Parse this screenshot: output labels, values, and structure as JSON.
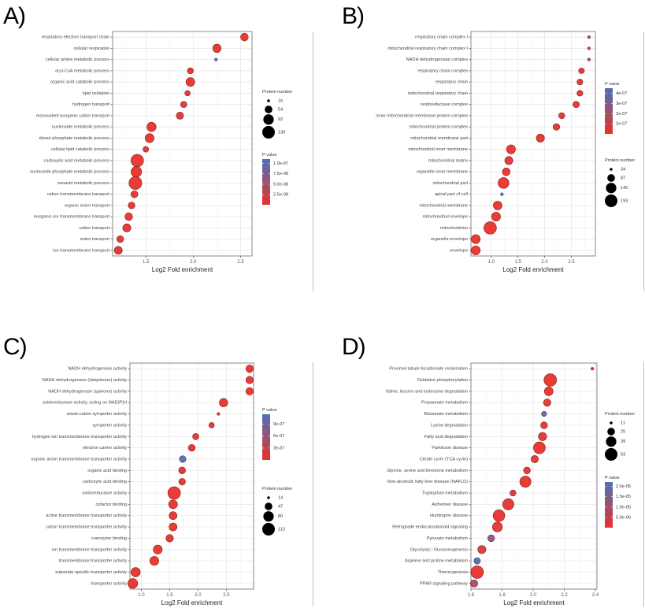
{
  "panel_labels": [
    "A)",
    "B)",
    "C)",
    "D)"
  ],
  "chart_data": [
    {
      "type": "scatter",
      "panel": "A)",
      "title": "",
      "xlabel": "Log2 Fold enrichment",
      "ylabel": "",
      "xlim": [
        1.15,
        2.62
      ],
      "xticks": [
        1.5,
        2.0,
        2.5
      ],
      "xtick_labels": [
        "1.5",
        "2.0",
        "2.5"
      ],
      "grid": true,
      "categories": [
        "respiratory electron transport chain",
        "cellular respiration",
        "cellular amine metabolic process",
        "acyl-CoA metabolic process",
        "organic acid catabolic process",
        "lipid oxidation",
        "hydrogen transport",
        "monovalent inorganic cation transport",
        "nucleoside metabolic process",
        "ribose phosphate metabolic process",
        "cellular lipid catabolic process",
        "carboxylic acid metabolic process",
        "nucleoside phosphate metabolic process",
        "oxoacid metabolic process",
        "cation transmembrane transport",
        "organic anion transport",
        "inorganic ion transmembrane transport",
        "cation transport",
        "anion transport",
        "ion transmembrane transport"
      ],
      "x": [
        2.54,
        2.25,
        2.24,
        1.97,
        1.97,
        1.94,
        1.9,
        1.86,
        1.56,
        1.54,
        1.5,
        1.41,
        1.4,
        1.39,
        1.38,
        1.35,
        1.32,
        1.3,
        1.23,
        1.21
      ],
      "protein_number": [
        55,
        62,
        16,
        38,
        68,
        32,
        40,
        50,
        75,
        70,
        35,
        130,
        95,
        135,
        48,
        45,
        55,
        60,
        45,
        58
      ],
      "p_value": [
        1e-09,
        2e-09,
        1.05e-07,
        5e-09,
        1e-09,
        8e-09,
        1.2e-08,
        1e-08,
        1e-09,
        1e-09,
        1.5e-08,
        1e-09,
        1e-09,
        1e-09,
        4e-09,
        6e-09,
        4e-09,
        3e-09,
        8e-09,
        5e-09
      ],
      "legend_order": [
        "size",
        "color"
      ],
      "size_legend": {
        "title": "Protein number",
        "values": [
          16,
          54,
          92,
          130
        ],
        "labels": [
          "16",
          "54",
          "92",
          "130"
        ]
      },
      "color_legend": {
        "title": "P value",
        "range": [
          1e-09,
          1.1e-07
        ],
        "ticks": [
          1e-07,
          7.5e-08,
          5e-08,
          2.5e-08
        ],
        "labels": [
          "1.0e-07",
          "7.5e-08",
          "5.0e-08",
          "2.5e-08"
        ],
        "low_color": "#e8312b",
        "high_color": "#4a72b8"
      }
    },
    {
      "type": "scatter",
      "panel": "B)",
      "title": "",
      "xlabel": "Log2 Fold enrichment",
      "ylabel": "",
      "xlim": [
        0.62,
        2.95
      ],
      "xticks": [
        1.0,
        1.5,
        2.0,
        2.5
      ],
      "xtick_labels": [
        "1.0",
        "1.5",
        "2.0",
        "2.5"
      ],
      "grid": true,
      "categories": [
        "respiratory chain complex I",
        "mitochondrial respiratory chain complex I",
        "NADH dehydrogenase complex",
        "respiratory chain complex",
        "respiratory chain",
        "mitochondrial respiratory chain",
        "oxidoreductase complex",
        "inner mitochondrial membrane protein complex",
        "mitochondrial protein complex",
        "mitochondrial membrane part",
        "mitochondrial inner membrane",
        "mitochondrial matrix",
        "organelle inner membrane",
        "mitochondrial part",
        "apical part of cell",
        "mitochondrial membrane",
        "mitochondrial envelope",
        "mitochondrion",
        "organelle envelope",
        "envelope"
      ],
      "x": [
        2.83,
        2.83,
        2.83,
        2.69,
        2.66,
        2.66,
        2.59,
        2.32,
        2.22,
        1.92,
        1.37,
        1.33,
        1.28,
        1.23,
        1.2,
        1.12,
        1.09,
        0.98,
        0.71,
        0.71
      ],
      "protein_number": [
        34,
        34,
        34,
        60,
        62,
        62,
        70,
        65,
        72,
        95,
        110,
        95,
        90,
        150,
        34,
        105,
        110,
        193,
        110,
        112
      ],
      "p_value": [
        1.5e-07,
        1.5e-07,
        1.2e-07,
        2e-08,
        3e-08,
        3e-08,
        2e-08,
        2e-08,
        2e-08,
        1e-08,
        1e-09,
        1e-09,
        1e-09,
        1e-09,
        4.3e-07,
        1e-09,
        1e-09,
        1e-09,
        1e-09,
        1e-09
      ],
      "legend_order": [
        "color",
        "size"
      ],
      "size_legend": {
        "title": "Protein number",
        "values": [
          34,
          87,
          140,
          193
        ],
        "labels": [
          "34",
          "87",
          "140",
          "193"
        ]
      },
      "color_legend": {
        "title": "P value",
        "range": [
          1e-09,
          4.5e-07
        ],
        "ticks": [
          4e-07,
          3e-07,
          2e-07,
          1e-07
        ],
        "labels": [
          "4e-07",
          "3e-07",
          "2e-07",
          "1e-07"
        ],
        "low_color": "#e8312b",
        "high_color": "#4a72b8"
      }
    },
    {
      "type": "scatter",
      "panel": "C)",
      "title": "",
      "xlabel": "Log2 Fold enrichment",
      "ylabel": "",
      "xlim": [
        0.8,
        2.98
      ],
      "xticks": [
        1.0,
        1.5,
        2.0,
        2.5
      ],
      "xtick_labels": [
        "1.0",
        "1.5",
        "2.0",
        "2.5"
      ],
      "grid": true,
      "categories": [
        "NADH dehydrogenase activity",
        "NADH dehydrogenase (ubiquinone) activity",
        "NADH dehydrogenase (quinone) activity",
        "oxidoreductase activity, acting on NAD(P)H",
        "solute:cation symporter activity",
        "symporter activity",
        "hydrogen ion transmembrane transporter activity",
        "electron carrier activity",
        "organic anion transmembrane transporter activity",
        "organic acid binding",
        "carboxylic acid binding",
        "oxidoreductase activity",
        "cofactor binding",
        "active transmembrane transporter activity",
        "cation transmembrane transporter activity",
        "coenzyme binding",
        "ion transmembrane transporter activity",
        "transmembrane transporter activity",
        "substrate-specific transporter activity",
        "transporter activity"
      ],
      "x": [
        2.91,
        2.91,
        2.91,
        2.45,
        2.36,
        2.24,
        1.96,
        1.89,
        1.73,
        1.72,
        1.72,
        1.58,
        1.56,
        1.56,
        1.56,
        1.5,
        1.29,
        1.23,
        0.9,
        0.85
      ],
      "protein_number": [
        45,
        45,
        45,
        55,
        14,
        28,
        35,
        40,
        38,
        40,
        38,
        113,
        60,
        50,
        50,
        45,
        62,
        62,
        66,
        72
      ],
      "p_value": [
        1e-09,
        1e-09,
        1e-09,
        1e-09,
        5e-08,
        3e-08,
        3e-08,
        2e-08,
        1.05e-06,
        2e-08,
        2e-08,
        1e-09,
        1e-09,
        1e-09,
        1e-09,
        1e-08,
        1e-09,
        1e-09,
        1e-09,
        1e-09
      ],
      "legend_order": [
        "color",
        "size"
      ],
      "size_legend": {
        "title": "Protein number",
        "values": [
          14,
          47,
          80,
          113
        ],
        "labels": [
          "14",
          "47",
          "80",
          "113"
        ]
      },
      "color_legend": {
        "title": "P value",
        "range": [
          1e-09,
          1.15e-06
        ],
        "ticks": [
          9e-07,
          6e-07,
          3e-07
        ],
        "labels": [
          "9e-07",
          "6e-07",
          "3e-07"
        ],
        "low_color": "#e8312b",
        "high_color": "#4a72b8"
      }
    },
    {
      "type": "scatter",
      "panel": "D)",
      "title": "",
      "xlabel": "Log2 Fold enrichment",
      "ylabel": "",
      "xlim": [
        1.6,
        2.41
      ],
      "xticks": [
        1.6,
        1.8,
        2.0,
        2.2,
        2.4
      ],
      "xtick_labels": [
        "1.6",
        "1.8",
        "2.0",
        "2.2",
        "2.4"
      ],
      "grid": true,
      "categories": [
        "Proximal tubule bicarbonate reclamation",
        "Oxidative phosphorylation",
        "Valine, leucine and isoleucine degradation",
        "Propanoate metabolism",
        "Butanoate metabolism",
        "Lysine degradation",
        "Fatty acid degradation",
        "Parkinson disease",
        "Citrate cycle (TCA cycle)",
        "Glycine, serine and threonine metabolism",
        "Non-alcoholic fatty liver disease (NAFLD)",
        "Tryptophan metabolism",
        "Alzheimer disease",
        "Huntington disease",
        "Retrograde endocannabinoid signaling",
        "Pyruvate metabolism",
        "Glycolysis / Gluconeogenesis",
        "Arginine and proline metabolism",
        "Thermogenesis",
        "PPAR signaling pathway"
      ],
      "x": [
        2.38,
        2.11,
        2.1,
        2.09,
        2.07,
        2.07,
        2.06,
        2.04,
        2.01,
        1.96,
        1.95,
        1.87,
        1.84,
        1.78,
        1.77,
        1.73,
        1.67,
        1.64,
        1.64,
        1.62
      ],
      "protein_number": [
        11,
        53,
        30,
        24,
        16,
        22,
        28,
        48,
        24,
        22,
        44,
        19,
        44,
        47,
        36,
        22,
        27,
        20,
        53,
        24
      ],
      "p_value": [
        1e-06,
        1e-07,
        1e-07,
        1e-06,
        1.8e-05,
        1e-06,
        1e-06,
        1e-07,
        1e-06,
        1e-06,
        1e-07,
        2e-06,
        1e-07,
        1e-07,
        1e-06,
        1.3e-05,
        3e-06,
        1.9e-05,
        1e-07,
        8e-06
      ],
      "legend_order": [
        "size",
        "color"
      ],
      "size_legend": {
        "title": "Protein number",
        "values": [
          11,
          25,
          39,
          53
        ],
        "labels": [
          "11",
          "25",
          "39",
          "53"
        ]
      },
      "color_legend": {
        "title": "P value",
        "range": [
          1e-07,
          2.2e-05
        ],
        "ticks": [
          2e-05,
          1.5e-05,
          1e-05,
          5e-06
        ],
        "labels": [
          "2.0e-05",
          "1.5e-05",
          "1.0e-05",
          "5.0e-06"
        ],
        "low_color": "#e8312b",
        "high_color": "#4a72b8"
      }
    }
  ]
}
